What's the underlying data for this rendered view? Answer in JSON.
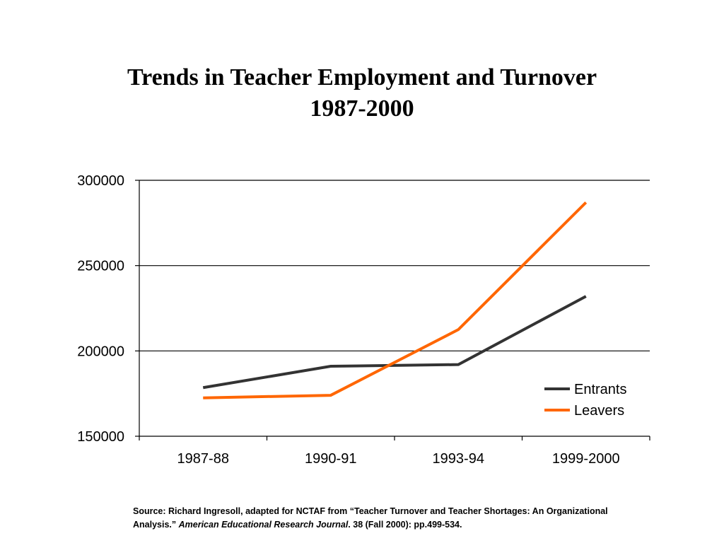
{
  "chart_data": {
    "type": "line",
    "title_line1": "Trends in Teacher Employment and Turnover",
    "title_line2": "1987-2000",
    "categories": [
      "1987-88",
      "1990-91",
      "1993-94",
      "1999-2000"
    ],
    "ylim": [
      150000,
      300000
    ],
    "yticks": [
      150000,
      200000,
      250000,
      300000
    ],
    "grid": true,
    "legend_position": "right",
    "series": [
      {
        "name": "Entrants",
        "color": "#333333",
        "values": [
          178500,
          191000,
          192000,
          232000
        ]
      },
      {
        "name": "Leavers",
        "color": "#ff6600",
        "values": [
          172500,
          174000,
          212500,
          287000
        ]
      }
    ]
  },
  "source": {
    "prefix": "Source: Richard Ingresoll, adapted for NCTAF from “Teacher Turnover and Teacher Shortages: An Organizational Analysis.” ",
    "journal": "American Educational Research Journal",
    "suffix": ". 38 (Fall 2000): pp.499-534."
  }
}
